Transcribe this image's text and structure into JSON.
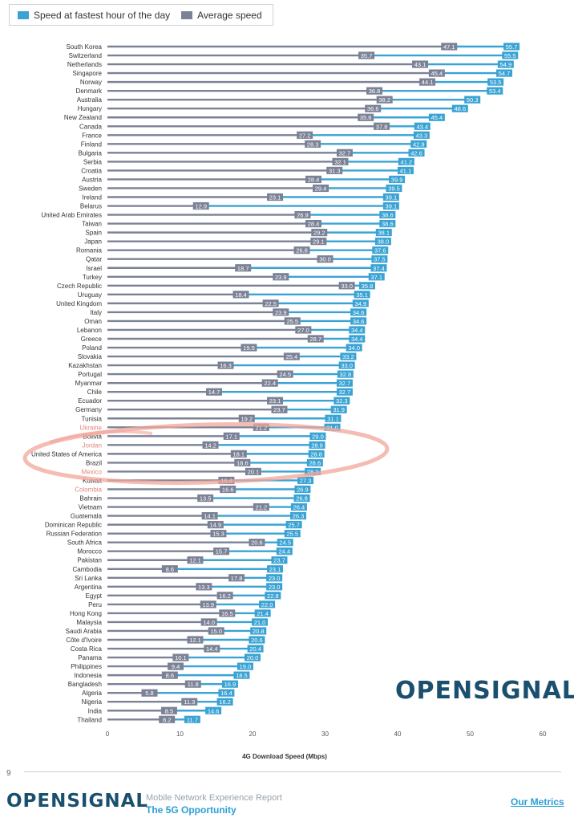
{
  "legend": {
    "fastest_label": "Speed at fastest hour of the day",
    "average_label": "Average speed"
  },
  "colors": {
    "fastest": "#3aa3d4",
    "average": "#7b8296",
    "highlight": "#f2a59b",
    "brand": "#1b4f6e",
    "accent": "#2a9fd6"
  },
  "chart_data": {
    "type": "bar",
    "orientation": "horizontal",
    "xlabel": "4G Download Speed (Mbps)",
    "xlim": [
      0,
      60
    ],
    "xticks": [
      0,
      10,
      20,
      30,
      40,
      50,
      60
    ],
    "grid": false,
    "legend_position": "top-left",
    "categories": [
      "South Korea",
      "Switzerland",
      "Netherlands",
      "Singapore",
      "Norway",
      "Denmark",
      "Australia",
      "Hungary",
      "New Zealand",
      "Canada",
      "France",
      "Finland",
      "Bulgaria",
      "Serbia",
      "Croatia",
      "Austria",
      "Sweden",
      "Ireland",
      "Belarus",
      "United Arab Emirates",
      "Taiwan",
      "Spain",
      "Japan",
      "Romania",
      "Qatar",
      "Israel",
      "Turkey",
      "Czech Republic",
      "Uruguay",
      "United Kingdom",
      "Italy",
      "Oman",
      "Lebanon",
      "Greece",
      "Poland",
      "Slovakia",
      "Kazakhstan",
      "Portugal",
      "Myanmar",
      "Chile",
      "Ecuador",
      "Germany",
      "Tunisia",
      "Ukraine",
      "Bolivia",
      "Jordan",
      "United States of America",
      "Brazil",
      "Mexico",
      "Kuwait",
      "Colombia",
      "Bahrain",
      "Vietnam",
      "Guatemala",
      "Dominican Republic",
      "Russian Federation",
      "South Africa",
      "Morocco",
      "Pakistan",
      "Cambodia",
      "Sri Lanka",
      "Argentina",
      "Egypt",
      "Peru",
      "Hong Kong",
      "Malaysia",
      "Saudi Arabia",
      "Côte d'Ivoire",
      "Costa Rica",
      "Panama",
      "Philippines",
      "Indonesia",
      "Bangladesh",
      "Algeria",
      "Nigeria",
      "India",
      "Thailand"
    ],
    "series": [
      {
        "name": "Speed at fastest hour of the day",
        "values": [
          55.7,
          55.5,
          54.9,
          54.7,
          53.5,
          53.4,
          50.3,
          48.6,
          45.4,
          43.4,
          43.3,
          42.9,
          42.6,
          41.2,
          41.1,
          39.9,
          39.5,
          39.1,
          39.1,
          38.6,
          38.6,
          38.1,
          38.0,
          37.6,
          37.5,
          37.4,
          37.1,
          35.8,
          35.1,
          34.9,
          34.6,
          34.6,
          34.4,
          34.4,
          34.0,
          33.2,
          33.0,
          32.8,
          32.7,
          32.7,
          32.3,
          31.9,
          31.1,
          31.0,
          29.0,
          28.9,
          28.8,
          28.6,
          28.3,
          27.3,
          26.9,
          26.8,
          26.4,
          26.3,
          25.7,
          25.5,
          24.5,
          24.4,
          23.7,
          23.1,
          23.0,
          23.0,
          22.8,
          22.0,
          21.4,
          21.0,
          20.8,
          20.6,
          20.4,
          20.0,
          19.0,
          18.5,
          16.9,
          16.4,
          16.2,
          14.6,
          11.7
        ]
      },
      {
        "name": "Average speed",
        "values": [
          47.1,
          35.7,
          43.1,
          45.4,
          44.1,
          36.8,
          38.2,
          36.6,
          35.6,
          37.8,
          27.2,
          28.3,
          32.7,
          32.1,
          31.3,
          28.4,
          29.4,
          23.1,
          12.9,
          26.9,
          28.4,
          29.2,
          29.1,
          26.8,
          30.0,
          18.7,
          23.9,
          33.0,
          18.4,
          22.5,
          23.9,
          25.5,
          27.0,
          28.7,
          19.5,
          25.4,
          16.3,
          24.5,
          22.4,
          14.7,
          23.1,
          23.7,
          19.2,
          21.2,
          17.1,
          14.2,
          18.1,
          18.6,
          20.1,
          16.4,
          16.6,
          13.5,
          21.2,
          14.1,
          14.9,
          15.3,
          20.6,
          15.7,
          12.1,
          8.6,
          17.8,
          13.3,
          16.2,
          13.9,
          16.5,
          14.0,
          15.0,
          12.1,
          14.4,
          10.1,
          9.4,
          8.6,
          11.8,
          5.8,
          11.3,
          8.5,
          8.2
        ]
      }
    ],
    "highlighted": [
      "Ukraine",
      "Jordan",
      "Mexico",
      "Colombia"
    ]
  },
  "footer": {
    "page_number": "9",
    "brand": "OPENSIGNAL",
    "report_title": "Mobile Network Experience Report",
    "report_subtitle": "The 5G Opportunity",
    "metrics_link": "Our Metrics"
  }
}
